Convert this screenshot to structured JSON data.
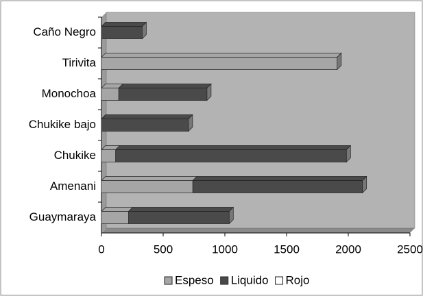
{
  "chart_data": {
    "type": "stacked-barh",
    "categories": [
      "Caño Negro",
      "Tirivita",
      "Monochoa",
      "Chukike bajo",
      "Chukike",
      "Amenani",
      "Guaymaraya"
    ],
    "series": [
      {
        "name": "Espeso",
        "color": "#a6a6a6",
        "values": [
          0,
          1910,
          140,
          0,
          115,
          740,
          220
        ]
      },
      {
        "name": "Liquido",
        "color": "#4a4a4a",
        "values": [
          330,
          0,
          715,
          705,
          1870,
          1375,
          815
        ]
      },
      {
        "name": "Rojo",
        "color": "#ffffff",
        "values": [
          0,
          0,
          0,
          0,
          0,
          0,
          0
        ]
      }
    ],
    "xlim": [
      0,
      2500
    ],
    "xticks": [
      0,
      500,
      1000,
      1500,
      2000,
      2500
    ],
    "legend": "bottom"
  }
}
